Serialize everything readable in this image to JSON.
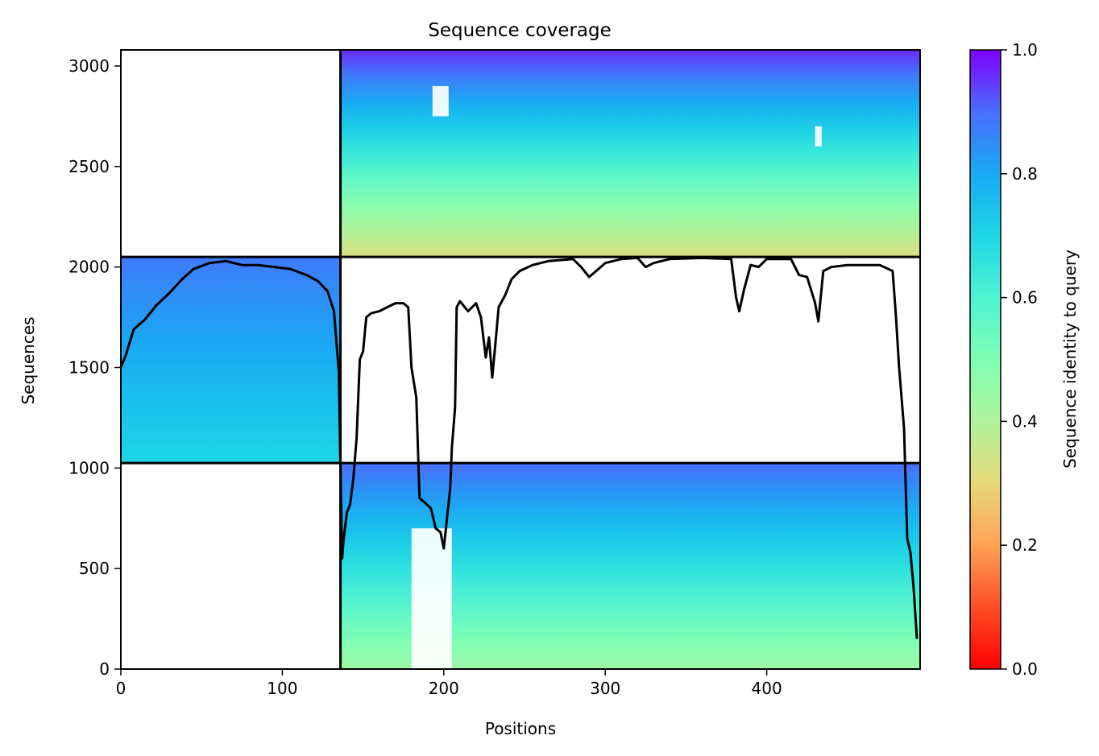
{
  "chart_data": {
    "type": "heatmap",
    "title": "Sequence coverage",
    "xlabel": "Positions",
    "ylabel": "Sequences",
    "xlim": [
      0,
      495
    ],
    "ylim": [
      0,
      3080
    ],
    "xticks": [
      0,
      100,
      200,
      300,
      400
    ],
    "yticks": [
      0,
      500,
      1000,
      1500,
      2000,
      2500,
      3000
    ],
    "colorbar": {
      "label": "Sequence identity to query",
      "colormap": "rainbow_r",
      "range": [
        0.0,
        1.0
      ],
      "ticks": [
        "0.0",
        "0.2",
        "0.4",
        "0.6",
        "0.8",
        "1.0"
      ]
    },
    "segments": [
      {
        "x_range": [
          136,
          495
        ],
        "y_range": [
          2050,
          3080
        ],
        "identity_top": 0.96,
        "identity_bottom": 0.32
      },
      {
        "x_range": [
          0,
          136
        ],
        "y_range": [
          1025,
          2050
        ],
        "identity_top": 0.88,
        "identity_bottom": 0.7
      },
      {
        "x_range": [
          136,
          495
        ],
        "y_range": [
          0,
          1025
        ],
        "identity_top": 0.9,
        "identity_bottom": 0.44
      }
    ],
    "gap_columns": [
      {
        "x_range": [
          180,
          205
        ],
        "y_range": [
          0,
          700
        ]
      },
      {
        "x_range": [
          193,
          203
        ],
        "y_range": [
          2750,
          2900
        ]
      },
      {
        "x_range": [
          430,
          434
        ],
        "y_range": [
          2600,
          2700
        ]
      }
    ],
    "boundaries": {
      "x": [
        136
      ],
      "y": [
        1025,
        2050
      ]
    },
    "coverage_line": {
      "color": "#000000",
      "x": [
        0,
        3,
        8,
        15,
        22,
        30,
        38,
        45,
        55,
        65,
        75,
        85,
        95,
        105,
        115,
        122,
        128,
        132,
        135,
        136,
        137,
        138,
        140,
        142,
        144,
        146,
        148,
        150,
        152,
        155,
        160,
        170,
        175,
        178,
        180,
        183,
        185,
        188,
        192,
        195,
        198,
        200,
        202,
        204,
        205,
        207,
        208,
        210,
        215,
        220,
        223,
        226,
        228,
        230,
        232,
        234,
        238,
        242,
        247,
        255,
        265,
        280,
        285,
        290,
        300,
        310,
        320,
        325,
        330,
        340,
        360,
        378,
        381,
        383,
        386,
        390,
        395,
        400,
        415,
        420,
        425,
        430,
        432,
        435,
        440,
        450,
        470,
        478,
        480,
        482,
        485,
        487,
        489,
        491,
        493
      ],
      "y": [
        1500,
        1560,
        1690,
        1740,
        1810,
        1870,
        1940,
        1990,
        2020,
        2030,
        2010,
        2010,
        2000,
        1990,
        1960,
        1930,
        1880,
        1780,
        1480,
        1025,
        550,
        650,
        780,
        820,
        950,
        1150,
        1540,
        1580,
        1750,
        1770,
        1780,
        1820,
        1820,
        1800,
        1500,
        1350,
        850,
        830,
        800,
        700,
        680,
        600,
        750,
        900,
        1100,
        1300,
        1800,
        1830,
        1780,
        1820,
        1750,
        1550,
        1650,
        1450,
        1620,
        1800,
        1860,
        1940,
        1980,
        2010,
        2030,
        2040,
        2000,
        1950,
        2020,
        2040,
        2045,
        2000,
        2020,
        2040,
        2045,
        2040,
        1850,
        1780,
        1890,
        2010,
        2000,
        2040,
        2040,
        1960,
        1950,
        1820,
        1730,
        1980,
        2000,
        2010,
        2010,
        1980,
        1760,
        1500,
        1200,
        650,
        580,
        400,
        150
      ]
    }
  }
}
